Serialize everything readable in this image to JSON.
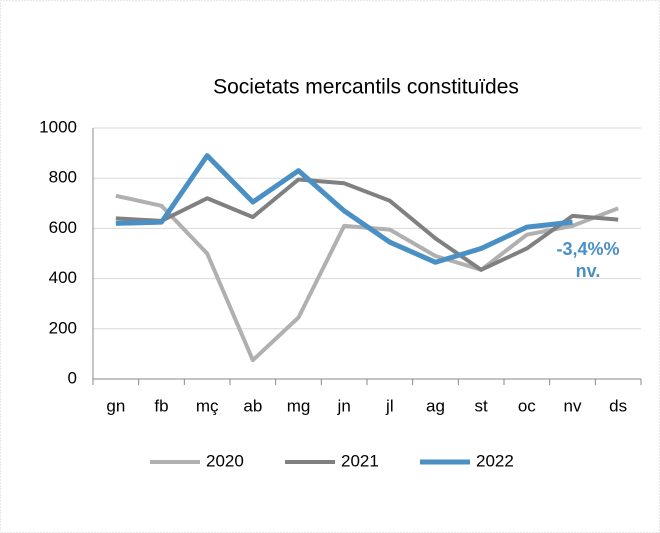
{
  "chart_data": {
    "type": "line",
    "title": "Societats mercantils  constituïdes",
    "categories": [
      "gn",
      "fb",
      "mç",
      "ab",
      "mg",
      "jn",
      "jl",
      "ag",
      "st",
      "oc",
      "nv",
      "ds"
    ],
    "series": [
      {
        "name": "2020",
        "color": "#b0b0b0",
        "values": [
          730,
          690,
          500,
          75,
          245,
          610,
          595,
          490,
          435,
          575,
          610,
          680
        ]
      },
      {
        "name": "2021",
        "color": "#808080",
        "values": [
          640,
          630,
          720,
          645,
          795,
          780,
          710,
          560,
          435,
          520,
          650,
          635
        ]
      },
      {
        "name": "2022",
        "color": "#4a90c4",
        "values": [
          620,
          625,
          890,
          705,
          830,
          670,
          545,
          465,
          520,
          605,
          625,
          null
        ]
      }
    ],
    "annotation": [
      "-3,4%%",
      "nv."
    ],
    "ylim": [
      0,
      1000
    ],
    "yticks": [
      0,
      200,
      400,
      600,
      800,
      1000
    ],
    "grid": true,
    "legend": "bottom"
  }
}
